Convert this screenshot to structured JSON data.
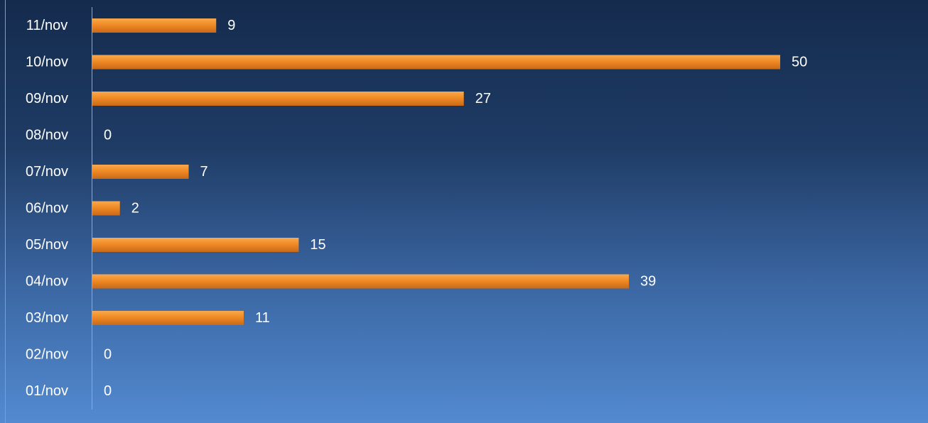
{
  "chart_data": {
    "type": "bar",
    "orientation": "horizontal",
    "categories": [
      "11/nov",
      "10/nov",
      "09/nov",
      "08/nov",
      "07/nov",
      "06/nov",
      "05/nov",
      "04/nov",
      "03/nov",
      "02/nov",
      "01/nov"
    ],
    "values": [
      9,
      50,
      27,
      0,
      7,
      2,
      15,
      39,
      11,
      0,
      0
    ],
    "title": "",
    "xlabel": "",
    "ylabel": "",
    "xlim": [
      0,
      50
    ],
    "grid": false,
    "legend": "none",
    "data_labels": true,
    "colors": {
      "bar": "#f08a24",
      "bar_highlight": "#f8a94e",
      "bar_shadow": "#c9691a",
      "text": "#ffffff",
      "axis": "#9aa7b8"
    }
  }
}
